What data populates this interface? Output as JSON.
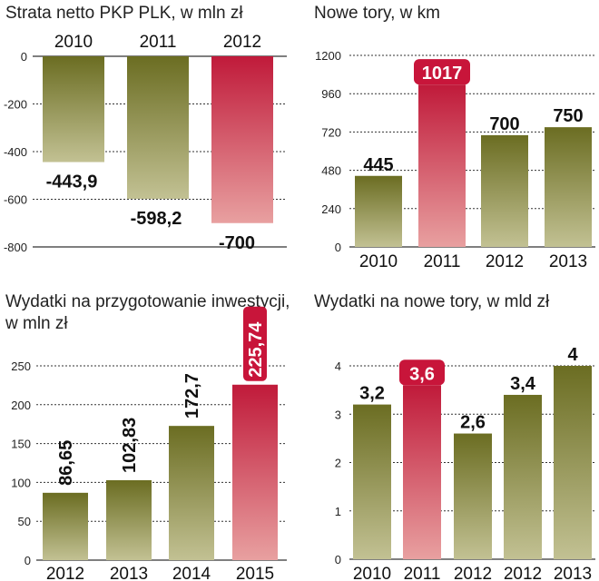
{
  "colors": {
    "olive_top": "#6b6d22",
    "olive_bottom": "#c2c193",
    "red_top": "#c01a3a",
    "red_bottom": "#e8a0a0",
    "highlight_badge": "#c8153a",
    "grid": "#333333"
  },
  "chart_data": [
    {
      "type": "bar",
      "title": "Strata netto PKP PLK, w mln zł",
      "categories": [
        "2010",
        "2011",
        "2012"
      ],
      "values": [
        -443.9,
        -598.2,
        -700
      ],
      "value_labels": [
        "-443,9",
        "-598,2",
        "-700"
      ],
      "highlight_index": 2,
      "ylim": [
        -800,
        0
      ],
      "yticks": [
        0,
        -200,
        -400,
        -600,
        -800
      ],
      "ytick_labels": [
        "0",
        "-200",
        "-400",
        "-600",
        "-800"
      ],
      "category_position": "top",
      "grid": true
    },
    {
      "type": "bar",
      "title": "Nowe tory, w km",
      "categories": [
        "2010",
        "2011",
        "2012",
        "2013"
      ],
      "values": [
        445,
        1017,
        700,
        750
      ],
      "value_labels": [
        "445",
        "1017",
        "700",
        "750"
      ],
      "highlight_index": 1,
      "ylim": [
        0,
        1200
      ],
      "yticks": [
        0,
        240,
        480,
        720,
        960,
        1200
      ],
      "ytick_labels": [
        "0",
        "240",
        "480",
        "720",
        "960",
        "1200"
      ],
      "category_position": "bottom",
      "grid": true
    },
    {
      "type": "bar",
      "title_lines": [
        "Wydatki na przygotowanie inwestycji,",
        "w mln zł"
      ],
      "categories": [
        "2012",
        "2013",
        "2014",
        "2015"
      ],
      "values": [
        86.65,
        102.83,
        172.7,
        225.74
      ],
      "value_labels": [
        "86,65",
        "102,83",
        "172,7",
        "225,74"
      ],
      "highlight_index": 3,
      "ylim": [
        0,
        250
      ],
      "yticks": [
        0,
        50,
        100,
        150,
        200,
        250
      ],
      "ytick_labels": [
        "0",
        "50",
        "100",
        "150",
        "200",
        "250"
      ],
      "label_orientation": "vertical",
      "category_position": "bottom",
      "grid": true
    },
    {
      "type": "bar",
      "title": "Wydatki na nowe tory, w mld zł",
      "categories": [
        "2010",
        "2011",
        "2012",
        "2012",
        "2013"
      ],
      "values": [
        3.2,
        3.6,
        2.6,
        3.4,
        4
      ],
      "value_labels": [
        "3,2",
        "3,6",
        "2,6",
        "3,4",
        "4"
      ],
      "highlight_index": 1,
      "ylim": [
        0,
        4
      ],
      "yticks": [
        0,
        1,
        2,
        3,
        4
      ],
      "ytick_labels": [
        "0",
        "1",
        "2",
        "3",
        "4"
      ],
      "category_position": "bottom",
      "grid": true
    }
  ]
}
